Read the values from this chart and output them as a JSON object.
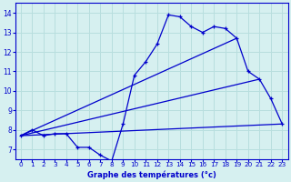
{
  "xlabel": "Graphe des températures (°c)",
  "bg_color": "#d6f0f0",
  "line_color": "#0000cc",
  "grid_color": "#b8dede",
  "x_hours": [
    0,
    1,
    2,
    3,
    4,
    5,
    6,
    7,
    8,
    9,
    10,
    11,
    12,
    13,
    14,
    15,
    16,
    17,
    18,
    19,
    20,
    21,
    22,
    23
  ],
  "temp_main": [
    7.7,
    8.0,
    7.7,
    7.8,
    7.8,
    7.1,
    7.1,
    6.7,
    6.4,
    8.3,
    10.8,
    11.5,
    12.4,
    13.9,
    13.8,
    13.3,
    13.0,
    13.3,
    13.2,
    12.7,
    11.0,
    10.6,
    9.6,
    8.3
  ],
  "straight_lines": [
    [
      0,
      7.7,
      23,
      8.3
    ],
    [
      0,
      7.7,
      21,
      10.6
    ],
    [
      0,
      7.7,
      19,
      12.7
    ]
  ],
  "ylim": [
    6.5,
    14.5
  ],
  "yticks": [
    7,
    8,
    9,
    10,
    11,
    12,
    13,
    14
  ],
  "xlim": [
    -0.5,
    23.5
  ],
  "marker": "+",
  "markersize": 3,
  "linewidth": 0.9
}
